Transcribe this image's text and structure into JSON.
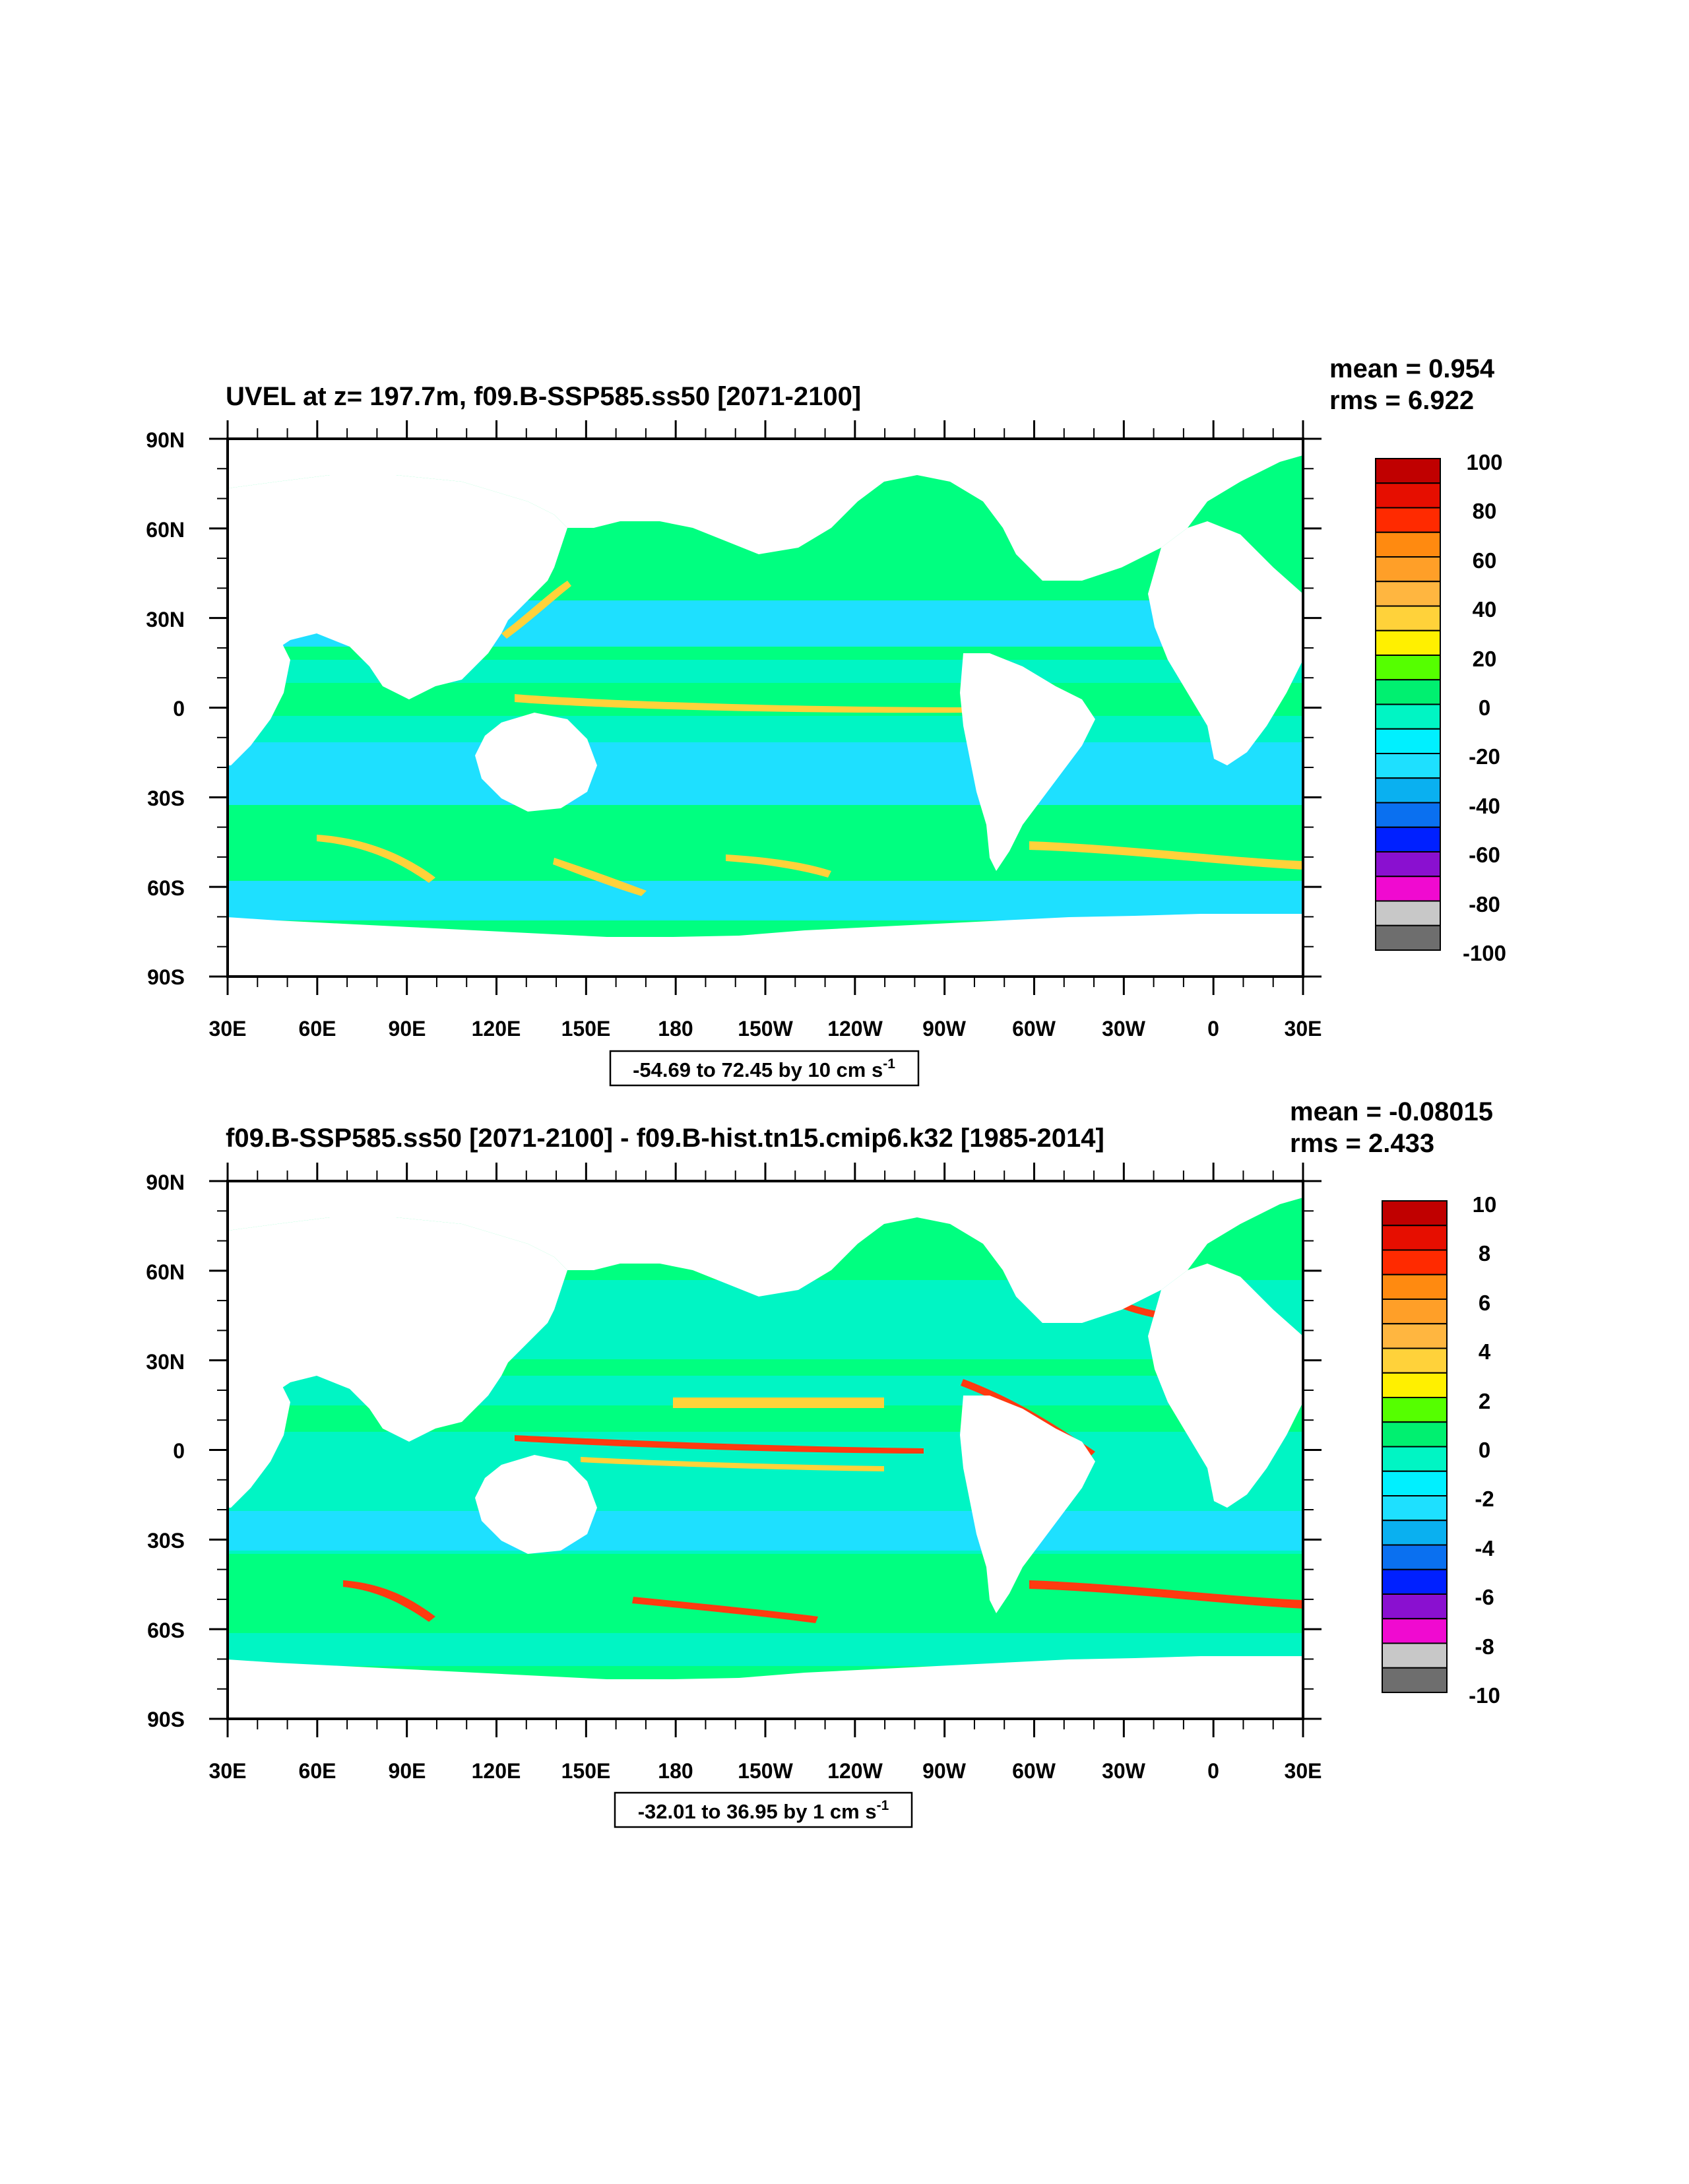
{
  "colors": {
    "ocean_base": "#00ff80",
    "shades": [
      "#00ff80",
      "#00f5c4",
      "#1ee0ff",
      "#ffd23a",
      "#ff3a10"
    ]
  },
  "panels": [
    {
      "title": "UVEL at z= 197.7m, f09.B-SSP585.ss50 [2071-2100]",
      "mean_label": "mean = 0.954",
      "rms_label": "rms = 6.922",
      "range_label_main": "-54.69 to 72.45 by 10 cm s",
      "range_label_sup": "-1",
      "lat_labels": [
        "90N",
        "60N",
        "30N",
        "0",
        "30S",
        "60S",
        "90S"
      ],
      "lon_labels": [
        "30E",
        "60E",
        "90E",
        "120E",
        "150E",
        "180",
        "150W",
        "120W",
        "90W",
        "60W",
        "30W",
        "0",
        "30E"
      ],
      "colorbar": {
        "labels": [
          "100",
          "80",
          "60",
          "40",
          "20",
          "0",
          "-20",
          "-40",
          "-60",
          "-80",
          "-100"
        ],
        "colors": [
          "#c00000",
          "#e60e00",
          "#ff2a00",
          "#ff8a10",
          "#ff9f28",
          "#ffb640",
          "#ffd23a",
          "#fff000",
          "#55ff00",
          "#00f070",
          "#00f5c4",
          "#00f0ff",
          "#1ee0ff",
          "#0ab0f0",
          "#0a70f0",
          "#0020ff",
          "#8a10d0",
          "#f00ad0",
          "#c8c8c8",
          "#6e6e6e"
        ]
      },
      "equatorial_band": "#ffd23a",
      "southern_band": "#ffd23a"
    },
    {
      "title": "f09.B-SSP585.ss50 [2071-2100] - f09.B-hist.tn15.cmip6.k32 [1985-2014]",
      "mean_label": "mean = -0.08015",
      "rms_label": "rms = 2.433",
      "range_label_main": "-32.01 to 36.95 by 1 cm s",
      "range_label_sup": "-1",
      "lat_labels": [
        "90N",
        "60N",
        "30N",
        "0",
        "30S",
        "60S",
        "90S"
      ],
      "lon_labels": [
        "30E",
        "60E",
        "90E",
        "120E",
        "150E",
        "180",
        "150W",
        "120W",
        "90W",
        "60W",
        "30W",
        "0",
        "30E"
      ],
      "colorbar": {
        "labels": [
          "10",
          "8",
          "6",
          "4",
          "2",
          "0",
          "-2",
          "-4",
          "-6",
          "-8",
          "-10"
        ],
        "colors": [
          "#c00000",
          "#e60e00",
          "#ff2a00",
          "#ff8a10",
          "#ff9f28",
          "#ffb640",
          "#ffd23a",
          "#fff000",
          "#55ff00",
          "#00f070",
          "#00f5c4",
          "#00f0ff",
          "#1ee0ff",
          "#0ab0f0",
          "#0a70f0",
          "#0020ff",
          "#8a10d0",
          "#f00ad0",
          "#c8c8c8",
          "#6e6e6e"
        ]
      },
      "equatorial_band": "#ff3a10",
      "southern_band": "#ff3a10"
    }
  ]
}
